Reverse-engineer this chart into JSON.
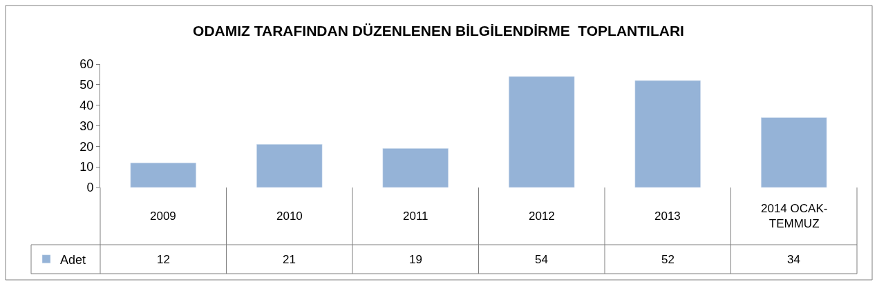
{
  "chart_data": {
    "type": "bar",
    "title": "ODAMIZ TARAFINDAN DÜZENLENEN BİLGİLENDİRME  TOPLANTILARI",
    "categories": [
      "2009",
      "2010",
      "2011",
      "2012",
      "2013",
      "2014 OCAK-TEMMUZ"
    ],
    "series": [
      {
        "name": "Adet",
        "color": "#95b3d7",
        "values": [
          12,
          21,
          19,
          54,
          52,
          34
        ]
      }
    ],
    "ylim": [
      0,
      60
    ],
    "yticks": [
      0,
      10,
      20,
      30,
      40,
      50,
      60
    ],
    "legend": "bottom left",
    "data_labels": true
  }
}
